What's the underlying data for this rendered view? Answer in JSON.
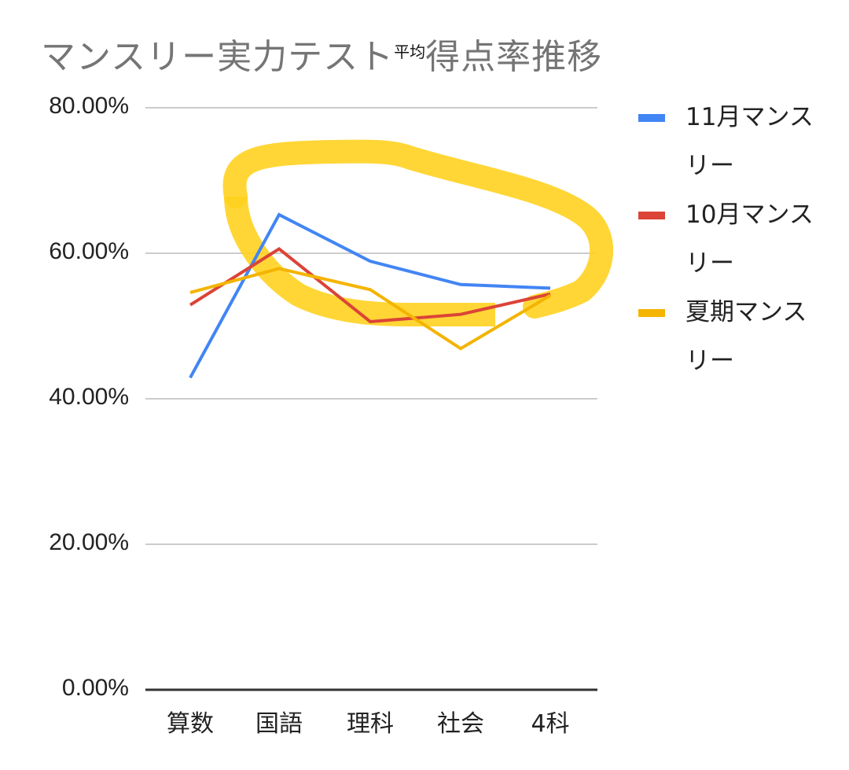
{
  "chart_data": {
    "type": "line",
    "title": "マンスリー実力テスト平均得点率推移",
    "title_main_before": "マンスリー実力テスト",
    "title_inserted": "平均",
    "title_main_after": "得点率推移",
    "xlabel": "",
    "ylabel": "",
    "categories": [
      "算数",
      "国語",
      "理科",
      "社会",
      "4科"
    ],
    "ylim": [
      0,
      80
    ],
    "yticks": [
      "0.00%",
      "20.00%",
      "40.00%",
      "60.00%",
      "80.00%"
    ],
    "grid": true,
    "legend_position": "right",
    "series": [
      {
        "name": "11月マンスリー",
        "legend_line1": "11月マンス",
        "legend_line2": "リー",
        "color": "#4285f4",
        "values": [
          42.9,
          65.3,
          58.9,
          55.7,
          55.2
        ]
      },
      {
        "name": "10月マンスリー",
        "legend_line1": "10月マンス",
        "legend_line2": "リー",
        "color": "#db4437",
        "values": [
          52.9,
          60.6,
          50.6,
          51.6,
          54.4
        ]
      },
      {
        "name": "夏期マンスリー",
        "legend_line1": "夏期マンス",
        "legend_line2": "リー",
        "color": "#f4b400",
        "values": [
          54.6,
          57.9,
          55.0,
          46.9,
          54.2
        ]
      }
    ],
    "annotation": {
      "type": "hand-drawn highlight loop",
      "color": "#ffd21f"
    }
  }
}
